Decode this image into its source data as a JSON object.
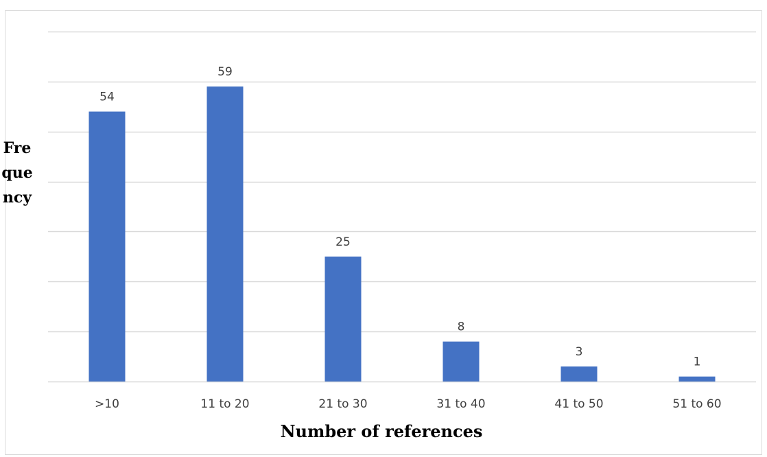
{
  "chart_data": {
    "type": "bar",
    "title": "",
    "xlabel": "Number of references",
    "ylabel": "Frequency",
    "categories": [
      ">10",
      "11 to 20",
      "21 to 30",
      "31 to 40",
      "41 to 50",
      "51 to 60"
    ],
    "values": [
      54,
      59,
      25,
      8,
      3,
      1
    ],
    "data_labels": [
      "54",
      "59",
      "25",
      "8",
      "3",
      "1"
    ],
    "ylim": [
      0,
      70
    ],
    "grid": true,
    "gridline_step": 10,
    "y_tick_labels_shown": false,
    "legend": "none",
    "colors": {
      "bar": "#4472c4",
      "grid": "#d9d9d9",
      "text": "#404040"
    }
  }
}
